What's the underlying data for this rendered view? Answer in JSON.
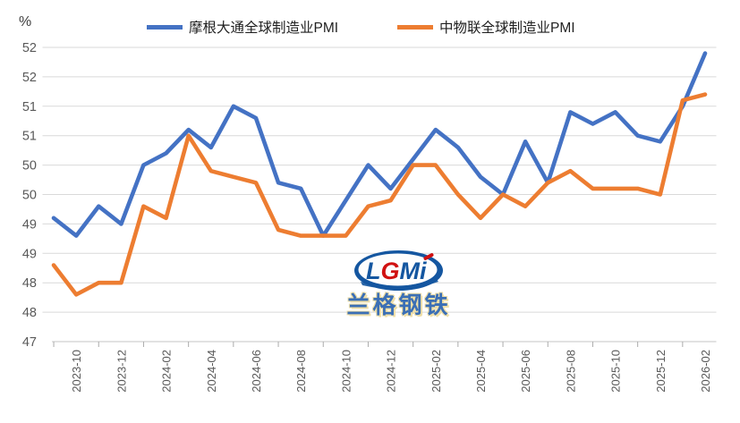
{
  "chart_data": {
    "type": "line",
    "y_unit": "%",
    "grid": true,
    "legend_position": "top",
    "x": [
      "2023-09",
      "2023-10",
      "2023-11",
      "2023-12",
      "2024-01",
      "2024-02",
      "2024-03",
      "2024-04",
      "2024-05",
      "2024-06",
      "2024-07",
      "2024-08",
      "2024-09",
      "2024-10",
      "2024-11",
      "2024-12",
      "2025-01",
      "2025-02",
      "2025-03",
      "2025-04",
      "2025-05",
      "2025-06",
      "2025-07",
      "2025-08",
      "2025-09",
      "2025-10",
      "2025-11",
      "2025-12",
      "2026-01",
      "2026-02"
    ],
    "x_tick_labels": [
      "2023-10",
      "2023-12",
      "2024-02",
      "2024-04",
      "2024-06",
      "2024-08",
      "2024-10",
      "2024-12",
      "2025-02",
      "2025-04",
      "2025-06",
      "2025-08",
      "2025-10",
      "2025-12",
      "2026-02"
    ],
    "y_axis": {
      "min": 47.0,
      "max": 52.0,
      "step": 0.5,
      "tick_display": [
        "52",
        "52",
        "51",
        "51",
        "50",
        "50",
        "49",
        "49",
        "48",
        "48",
        "47"
      ]
    },
    "series": [
      {
        "name": "摩根大通全球制造业PMI",
        "color": "#4472C4",
        "values": [
          49.1,
          48.8,
          49.3,
          49.0,
          50.0,
          50.2,
          50.6,
          50.3,
          51.0,
          50.8,
          49.7,
          49.6,
          48.8,
          49.4,
          50.0,
          49.6,
          50.1,
          50.6,
          50.3,
          49.8,
          49.5,
          50.4,
          49.7,
          50.9,
          50.7,
          50.9,
          50.5,
          50.4,
          51.0,
          51.9
        ]
      },
      {
        "name": "中物联全球制造业PMI",
        "color": "#ED7D31",
        "values": [
          48.3,
          47.8,
          48.0,
          48.0,
          49.3,
          49.1,
          50.5,
          49.9,
          49.8,
          49.7,
          48.9,
          48.8,
          48.8,
          48.8,
          49.3,
          49.4,
          50.0,
          50.0,
          49.5,
          49.1,
          49.5,
          49.3,
          49.7,
          49.9,
          49.6,
          49.6,
          49.6,
          49.5,
          51.1,
          51.2
        ]
      }
    ],
    "colors": {
      "gridline": "#D9D9D9",
      "axis_line": "#C6C6C6",
      "tick_mark": "#ABABAB",
      "axis_text": "#595959"
    }
  },
  "watermark": {
    "logo_text_l": "L",
    "logo_text_g": "G",
    "logo_text_m": "M",
    "logo_text_i": "i",
    "brand_text": "兰格钢铁",
    "logo_blue": "#1456A0",
    "logo_red": "#D01010"
  }
}
